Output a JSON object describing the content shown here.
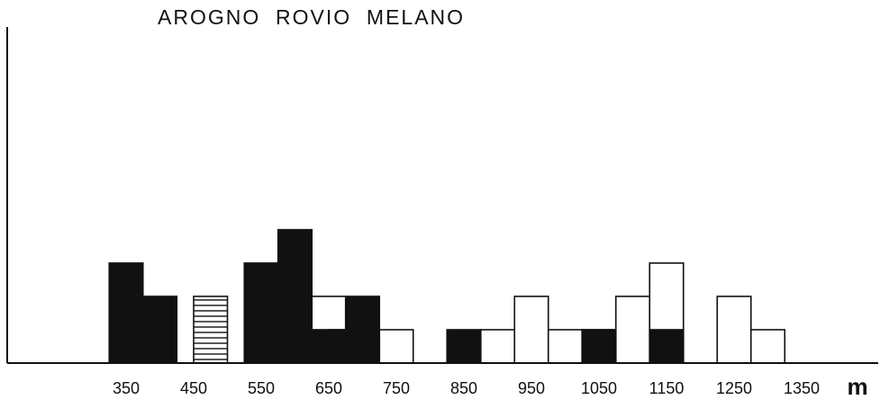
{
  "chart_data": {
    "type": "bar",
    "title": "AROGNO  ROVIO  MELANO",
    "xlabel": "m",
    "x_tick_labels": [
      "350",
      "450",
      "550",
      "650",
      "750",
      "850",
      "950",
      "1050",
      "1150",
      "1250",
      "1350"
    ],
    "x_tick_values": [
      350,
      450,
      550,
      650,
      750,
      850,
      950,
      1050,
      1150,
      1250,
      1350
    ],
    "xlim": [
      300,
      1400
    ],
    "ylim": [
      0,
      4.2
    ],
    "grid": false,
    "legend": "none",
    "bin_width": 50,
    "series": [
      {
        "fill": "solid",
        "bins": [
          {
            "start": 325,
            "value": 3
          },
          {
            "start": 375,
            "value": 2
          },
          {
            "start": 425,
            "value": 0
          },
          {
            "start": 475,
            "value": 0
          },
          {
            "start": 525,
            "value": 3
          },
          {
            "start": 575,
            "value": 4
          },
          {
            "start": 625,
            "value": 1
          },
          {
            "start": 675,
            "value": 2
          },
          {
            "start": 725,
            "value": 0
          },
          {
            "start": 775,
            "value": 0
          },
          {
            "start": 825,
            "value": 1
          },
          {
            "start": 875,
            "value": 0
          },
          {
            "start": 925,
            "value": 0
          },
          {
            "start": 975,
            "value": 0
          },
          {
            "start": 1025,
            "value": 1
          },
          {
            "start": 1075,
            "value": 0
          },
          {
            "start": 1125,
            "value": 1
          },
          {
            "start": 1175,
            "value": 0
          },
          {
            "start": 1225,
            "value": 0
          },
          {
            "start": 1275,
            "value": 0
          }
        ]
      },
      {
        "fill": "hatched",
        "bins": [
          {
            "start": 450,
            "value": 2
          },
          {
            "start": 650,
            "value": 1
          }
        ]
      },
      {
        "fill": "outline",
        "bins": [
          {
            "start": 625,
            "value": 2
          },
          {
            "start": 725,
            "value": 1
          },
          {
            "start": 875,
            "value": 1
          },
          {
            "start": 925,
            "value": 2
          },
          {
            "start": 975,
            "value": 1
          },
          {
            "start": 1025,
            "value": 1
          },
          {
            "start": 1075,
            "value": 2
          },
          {
            "start": 1125,
            "value": 3
          },
          {
            "start": 1225,
            "value": 2
          },
          {
            "start": 1275,
            "value": 1
          }
        ]
      }
    ],
    "colors": {
      "solid": "#111111",
      "outline": "#ffffff",
      "stroke": "#111111",
      "axis": "#111111"
    }
  }
}
